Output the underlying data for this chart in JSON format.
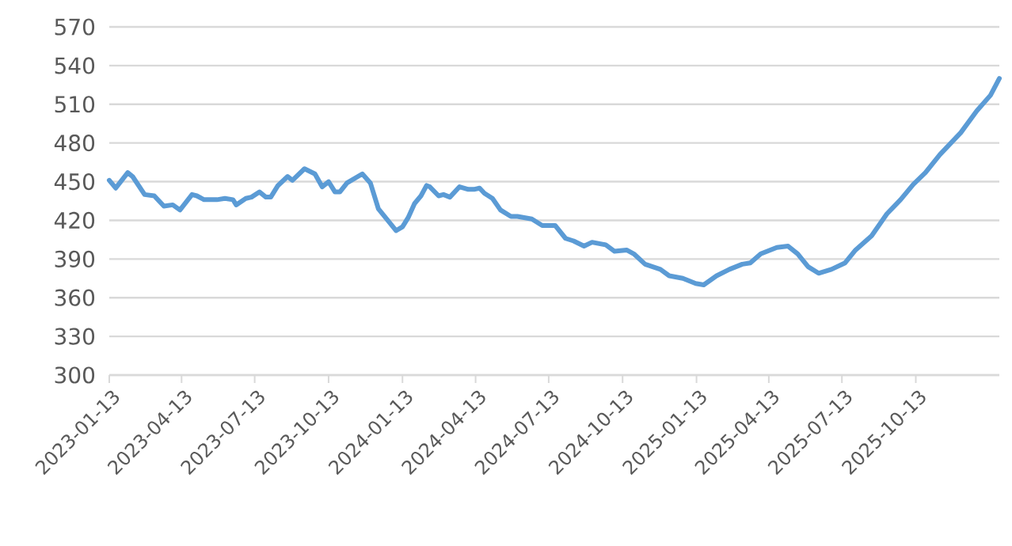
{
  "chart_data": {
    "type": "line",
    "color": "#5b9bd5",
    "grid": "y",
    "xlim": [
      "2023-01-13",
      "2026-01-25"
    ],
    "xticks": [
      "2023-01-13",
      "2023-04-13",
      "2023-07-13",
      "2023-10-13",
      "2024-01-13",
      "2024-04-13",
      "2024-07-13",
      "2024-10-13",
      "2025-01-13",
      "2025-04-13",
      "2025-07-13",
      "2025-10-13"
    ],
    "ylim": [
      300,
      570
    ],
    "yticks": [
      300,
      330,
      360,
      390,
      420,
      450,
      480,
      510,
      540,
      570
    ],
    "x": [
      "2023-01-13",
      "2023-01-21",
      "2023-02-05",
      "2023-02-11",
      "2023-02-26",
      "2023-03-10",
      "2023-03-22",
      "2023-04-02",
      "2023-04-11",
      "2023-04-26",
      "2023-05-02",
      "2023-05-11",
      "2023-05-27",
      "2023-06-06",
      "2023-06-16",
      "2023-06-20",
      "2023-07-02",
      "2023-07-09",
      "2023-07-19",
      "2023-07-27",
      "2023-08-02",
      "2023-08-11",
      "2023-08-23",
      "2023-08-29",
      "2023-09-13",
      "2023-09-26",
      "2023-10-05",
      "2023-10-13",
      "2023-10-21",
      "2023-10-27",
      "2023-11-05",
      "2023-11-24",
      "2023-12-04",
      "2023-12-14",
      "2023-12-27",
      "2024-01-05",
      "2024-01-13",
      "2024-01-20",
      "2024-01-28",
      "2024-02-05",
      "2024-02-12",
      "2024-02-16",
      "2024-02-27",
      "2024-03-04",
      "2024-03-12",
      "2024-03-24",
      "2024-04-04",
      "2024-04-11",
      "2024-04-18",
      "2024-04-24",
      "2024-05-04",
      "2024-05-14",
      "2024-05-27",
      "2024-06-04",
      "2024-06-22",
      "2024-07-05",
      "2024-07-21",
      "2024-08-03",
      "2024-08-13",
      "2024-08-26",
      "2024-09-05",
      "2024-09-22",
      "2024-10-03",
      "2024-10-18",
      "2024-10-27",
      "2024-11-10",
      "2024-11-29",
      "2024-12-10",
      "2024-12-27",
      "2025-01-12",
      "2025-01-22",
      "2025-02-07",
      "2025-02-23",
      "2025-03-11",
      "2025-03-21",
      "2025-04-03",
      "2025-04-23",
      "2025-05-07",
      "2025-05-19",
      "2025-06-01",
      "2025-06-14",
      "2025-06-30",
      "2025-07-17",
      "2025-07-30",
      "2025-08-19",
      "2025-09-07",
      "2025-09-24",
      "2025-10-10",
      "2025-10-25",
      "2025-11-12",
      "2025-12-08",
      "2025-12-28",
      "2026-01-14",
      "2026-01-25"
    ],
    "values": [
      451,
      445,
      457,
      454,
      440,
      439,
      431,
      432,
      428,
      440,
      439,
      436,
      436,
      437,
      436,
      432,
      437,
      438,
      442,
      438,
      438,
      447,
      454,
      451,
      460,
      456,
      446,
      450,
      442,
      442,
      449,
      456,
      449,
      429,
      419,
      412,
      415,
      422,
      433,
      439,
      447,
      446,
      439,
      440,
      438,
      446,
      444,
      444,
      445,
      441,
      437,
      428,
      423,
      423,
      421,
      416,
      416,
      406,
      404,
      400,
      403,
      401,
      396,
      397,
      394,
      386,
      382,
      377,
      375,
      371,
      370,
      377,
      382,
      386,
      387,
      394,
      399,
      400,
      394,
      384,
      379,
      382,
      387,
      397,
      408,
      425,
      436,
      448,
      457,
      471,
      488,
      505,
      517,
      530
    ]
  }
}
